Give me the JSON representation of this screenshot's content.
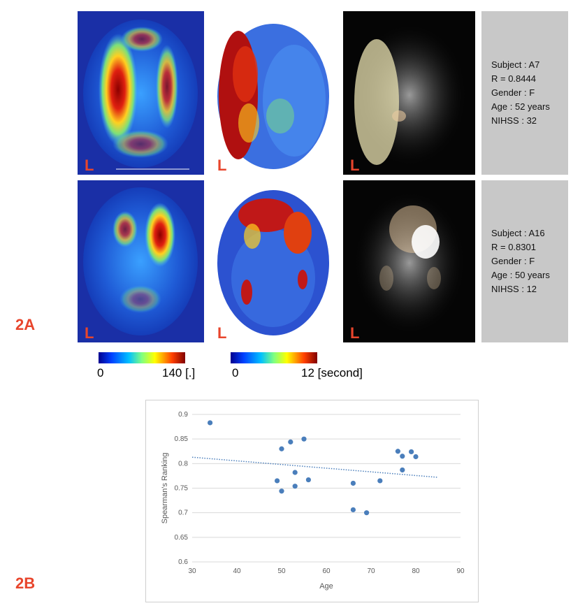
{
  "panels": {
    "a_label": "2A",
    "b_label": "2B"
  },
  "tile_letter": "L",
  "subjects": [
    {
      "lines": [
        "Subject : A7",
        "R = 0.8444",
        "Gender : F",
        "Age : 52 years",
        "NIHSS : 32"
      ]
    },
    {
      "lines": [
        "Subject : A16",
        "R = 0.8301",
        "Gender : F",
        "Age : 50 years",
        "NIHSS : 12"
      ]
    }
  ],
  "colorbars": [
    {
      "min": "0",
      "max": "140 [.]"
    },
    {
      "min": "0",
      "max": "12 [second]"
    }
  ],
  "colors": {
    "panel_label": "#e8452c",
    "info_bg": "#c8c8c8",
    "point": "#4a7ebb"
  },
  "chart_data": {
    "type": "scatter",
    "xlabel": "Age",
    "ylabel": "Spearman's Ranking",
    "xlim": [
      30,
      90
    ],
    "ylim": [
      0.6,
      0.9
    ],
    "xticks": [
      "30",
      "40",
      "50",
      "60",
      "70",
      "80",
      "90"
    ],
    "yticks": [
      "0.6",
      "0.65",
      "0.7",
      "0.75",
      "0.8",
      "0.85",
      "0.9"
    ],
    "grid": "horizontal",
    "trendline": {
      "style": "dotted",
      "x": [
        30,
        85
      ],
      "y": [
        0.813,
        0.772
      ]
    },
    "points": [
      [
        34,
        0.883
      ],
      [
        49,
        0.765
      ],
      [
        50,
        0.83
      ],
      [
        50,
        0.744
      ],
      [
        52,
        0.844
      ],
      [
        53,
        0.782
      ],
      [
        53,
        0.754
      ],
      [
        55,
        0.85
      ],
      [
        56,
        0.767
      ],
      [
        66,
        0.76
      ],
      [
        66,
        0.706
      ],
      [
        69,
        0.7
      ],
      [
        72,
        0.765
      ],
      [
        76,
        0.825
      ],
      [
        77,
        0.815
      ],
      [
        77,
        0.787
      ],
      [
        79,
        0.824
      ],
      [
        80,
        0.814
      ]
    ]
  }
}
